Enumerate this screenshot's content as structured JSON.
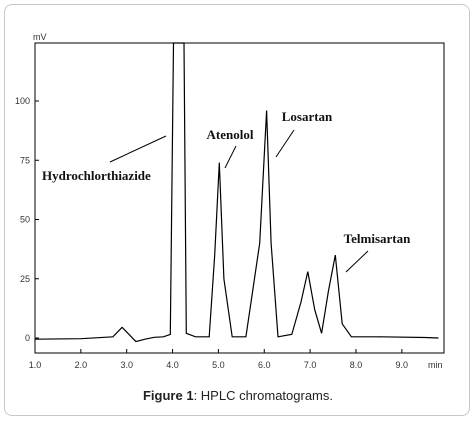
{
  "caption": {
    "label": "Figure 1",
    "text": ": HPLC chromatograms."
  },
  "chart_data": {
    "type": "line",
    "title": "",
    "xlabel": "min",
    "ylabel": "mV",
    "xlim": [
      1.0,
      10.0
    ],
    "ylim": [
      -5,
      125
    ],
    "x_ticks": [
      "1.0",
      "2.0",
      "3.0",
      "4.0",
      "5.0",
      "6.0",
      "7.0",
      "8.0",
      "9.0"
    ],
    "y_ticks": [
      "0",
      "25",
      "50",
      "75",
      "100"
    ],
    "grid": false,
    "color": "#000000",
    "series": [
      {
        "x": [
          1.0,
          2.0,
          2.7,
          2.9,
          3.05,
          3.2,
          3.4,
          3.6,
          3.8,
          3.95,
          4.02,
          4.05,
          4.2,
          4.25,
          4.3,
          4.5,
          4.8,
          4.92,
          5.02,
          5.12,
          5.3,
          5.6,
          5.9,
          6.05,
          6.15,
          6.3,
          6.6,
          6.8,
          6.95,
          7.1,
          7.25,
          7.4,
          7.55,
          7.7,
          7.9,
          8.5,
          9.5,
          9.8
        ],
        "y": [
          -0.5,
          -0.3,
          0.5,
          4.5,
          1.5,
          -1.5,
          -0.5,
          0.3,
          0.5,
          1.5,
          125,
          125,
          125,
          125,
          2.0,
          0.5,
          0.5,
          35.0,
          74.0,
          25.0,
          0.5,
          0.5,
          40.0,
          96.0,
          40.0,
          0.5,
          1.5,
          15.0,
          28.0,
          12.0,
          2.0,
          20.0,
          35.0,
          6.0,
          0.5,
          0.5,
          0.2,
          0.0
        ]
      }
    ],
    "annotations": [
      {
        "text": "Hydrochlorthiazide",
        "x": 4.0,
        "y": 118
      },
      {
        "text": "Atenolol",
        "x": 5.02,
        "y": 74
      },
      {
        "text": "Losartan",
        "x": 6.05,
        "y": 96
      },
      {
        "text": "Telmisartan",
        "x": 7.55,
        "y": 35
      }
    ]
  }
}
